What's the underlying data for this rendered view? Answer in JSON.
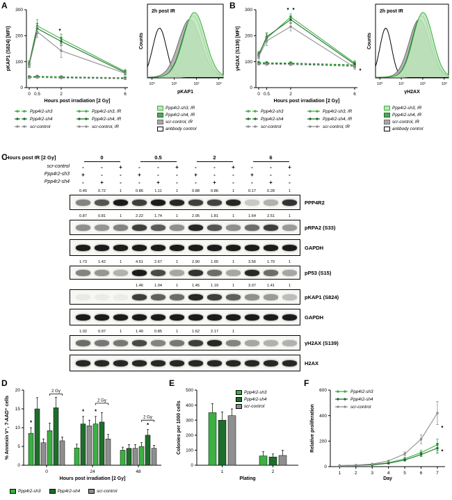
{
  "colors": {
    "green_light": "#3cb043",
    "green_dark": "#1d6e2a",
    "gray": "#8f8f8f",
    "black": "#000000"
  },
  "panelA": {
    "label": "A",
    "chart_data": {
      "type": "line",
      "ylabel": "pKAP1 (S824) [MFI]",
      "xlabel": "Hours post irradiation [2 Gy]",
      "ylim": [
        0,
        300
      ],
      "yticks": [
        0,
        100,
        200,
        300
      ],
      "x": [
        0,
        0.5,
        2,
        6
      ],
      "xticks": [
        "0",
        "0.5",
        "2",
        "6"
      ],
      "series": [
        {
          "name": "Ppp4r2-sh3",
          "color": "green_light",
          "dash": true,
          "values": [
            42,
            44,
            42,
            38
          ],
          "err": [
            4,
            4,
            4,
            4
          ]
        },
        {
          "name": "Ppp4r2-sh4",
          "color": "green_dark",
          "dash": true,
          "values": [
            40,
            41,
            39,
            36
          ],
          "err": [
            4,
            4,
            4,
            4
          ]
        },
        {
          "name": "scr-control",
          "color": "gray",
          "dash": true,
          "values": [
            38,
            39,
            37,
            34
          ],
          "err": [
            3,
            3,
            3,
            3
          ]
        },
        {
          "name": "Ppp4r2-sh3, IR",
          "color": "green_light",
          "dash": false,
          "values": [
            95,
            238,
            188,
            62
          ],
          "err": [
            10,
            24,
            18,
            8
          ]
        },
        {
          "name": "Ppp4r2-sh4, IR",
          "color": "green_dark",
          "dash": false,
          "values": [
            90,
            228,
            178,
            58
          ],
          "err": [
            10,
            20,
            16,
            8
          ]
        },
        {
          "name": "scr-control, IR",
          "color": "gray",
          "dash": false,
          "values": [
            86,
            215,
            142,
            55
          ],
          "err": [
            9,
            22,
            26,
            7
          ]
        }
      ],
      "annotations": [
        {
          "text": "*",
          "x": 2,
          "y": 212,
          "dx": -2
        }
      ]
    },
    "legend": [
      {
        "label": "Ppp4r2-sh3",
        "color": "green_light",
        "dash": true
      },
      {
        "label": "Ppp4r2-sh3, IR",
        "color": "green_light",
        "dash": false
      },
      {
        "label": "Ppp4r2-sh4",
        "color": "green_dark",
        "dash": true
      },
      {
        "label": "Ppp4r2-sh4, IR",
        "color": "green_dark",
        "dash": false
      },
      {
        "label": "scr-control",
        "color": "gray",
        "dash": true
      },
      {
        "label": "scr-control, IR",
        "color": "gray",
        "dash": false
      }
    ],
    "hist": {
      "title": "2h post IR",
      "ylabel": "Counts",
      "xlabel": "pKAP1",
      "xticks": [
        "10⁰",
        "10¹",
        "10²",
        "10³"
      ],
      "curves": [
        {
          "name": "antibody control",
          "center": 0.16,
          "width": 0.09,
          "height": 0.72,
          "stroke": "#000000",
          "fill": "none"
        },
        {
          "name": "scr-control, IR",
          "center": 0.56,
          "width": 0.15,
          "height": 0.85,
          "stroke": "#6e6e6e",
          "fill": "#a8a8a8"
        },
        {
          "name": "Ppp4r2-sh4, IR",
          "center": 0.6,
          "width": 0.14,
          "height": 0.9,
          "stroke": "#1d6e2a",
          "fill": "none"
        },
        {
          "name": "Ppp4r2-sh3, IR",
          "center": 0.62,
          "width": 0.145,
          "height": 0.95,
          "stroke": "#3cb043",
          "fill": "#bce6b8"
        }
      ],
      "legend": [
        {
          "label": "Ppp4r2-sh3, IR",
          "fill": "#bce6b8",
          "stroke": "#3cb043"
        },
        {
          "label": "Ppp4r2-sh4, IR",
          "fill": "#55a35c",
          "stroke": "#1d6e2a"
        },
        {
          "label": "scr-control, IR",
          "fill": "#a8a8a8",
          "stroke": "#6e6e6e"
        },
        {
          "label": "antibody control",
          "fill": "#ffffff",
          "stroke": "#000000"
        }
      ]
    }
  },
  "panelB": {
    "label": "B",
    "chart_data": {
      "type": "line",
      "ylabel": "γH2AX (S139) [MFI]",
      "xlabel": "Hours post irradiation [2 Gy]",
      "ylim": [
        0,
        300
      ],
      "yticks": [
        0,
        100,
        200,
        300
      ],
      "x": [
        0,
        0.5,
        2,
        6
      ],
      "xticks": [
        "0",
        "0.5",
        "2",
        "6"
      ],
      "series": [
        {
          "name": "Ppp4r2-sh3",
          "color": "green_light",
          "dash": true,
          "values": [
            97,
            96,
            95,
            88
          ],
          "err": [
            5,
            5,
            5,
            5
          ]
        },
        {
          "name": "Ppp4r2-sh4",
          "color": "green_dark",
          "dash": true,
          "values": [
            94,
            93,
            92,
            85
          ],
          "err": [
            5,
            5,
            5,
            5
          ]
        },
        {
          "name": "scr-control",
          "color": "gray",
          "dash": true,
          "values": [
            91,
            90,
            89,
            82
          ],
          "err": [
            4,
            4,
            4,
            4
          ]
        },
        {
          "name": "Ppp4r2-sh3, IR",
          "color": "green_light",
          "dash": false,
          "values": [
            130,
            190,
            272,
            95
          ],
          "err": [
            10,
            14,
            12,
            9
          ]
        },
        {
          "name": "Ppp4r2-sh4, IR",
          "color": "green_dark",
          "dash": false,
          "values": [
            125,
            196,
            262,
            90
          ],
          "err": [
            10,
            15,
            14,
            9
          ]
        },
        {
          "name": "scr-control, IR",
          "color": "gray",
          "dash": false,
          "values": [
            120,
            180,
            235,
            78
          ],
          "err": [
            10,
            18,
            16,
            8
          ]
        }
      ],
      "annotations": [
        {
          "text": "*",
          "x": 2,
          "y": 292,
          "dx": -4
        },
        {
          "text": "*",
          "x": 2,
          "y": 292,
          "dx": 4
        },
        {
          "text": "*",
          "x": 6,
          "y": 58,
          "dx": 8
        }
      ]
    },
    "legend": [
      {
        "label": "Ppp4r2-sh3",
        "color": "green_light",
        "dash": true
      },
      {
        "label": "Ppp4r2-sh3, IR",
        "color": "green_light",
        "dash": false
      },
      {
        "label": "Ppp4r2-sh4",
        "color": "green_dark",
        "dash": true
      },
      {
        "label": "Ppp4r2-sh4, IR",
        "color": "green_dark",
        "dash": false
      },
      {
        "label": "scr-control",
        "color": "gray",
        "dash": true
      },
      {
        "label": "scr-control, IR",
        "color": "gray",
        "dash": false
      }
    ],
    "hist": {
      "title": "2h post IR",
      "ylabel": "Counts",
      "xlabel": "γH2AX",
      "xticks": [
        "10⁰",
        "10¹",
        "10²",
        "10³"
      ],
      "curves": [
        {
          "name": "antibody control",
          "center": 0.14,
          "width": 0.08,
          "height": 0.72,
          "stroke": "#000000",
          "fill": "none"
        },
        {
          "name": "scr-control, IR",
          "center": 0.6,
          "width": 0.14,
          "height": 0.85,
          "stroke": "#6e6e6e",
          "fill": "#a8a8a8"
        },
        {
          "name": "Ppp4r2-sh4, IR",
          "center": 0.63,
          "width": 0.13,
          "height": 0.9,
          "stroke": "#1d6e2a",
          "fill": "none"
        },
        {
          "name": "Ppp4r2-sh3, IR",
          "center": 0.65,
          "width": 0.135,
          "height": 0.95,
          "stroke": "#3cb043",
          "fill": "#bce6b8"
        }
      ],
      "legend": [
        {
          "label": "Ppp4r2-sh3, IR",
          "fill": "#bce6b8",
          "stroke": "#3cb043"
        },
        {
          "label": "Ppp4r2-sh4, IR",
          "fill": "#55a35c",
          "stroke": "#1d6e2a"
        },
        {
          "label": "scr-control, IR",
          "fill": "#a8a8a8",
          "stroke": "#6e6e6e"
        },
        {
          "label": "antibody control",
          "fill": "#ffffff",
          "stroke": "#000000"
        }
      ]
    }
  },
  "panelC": {
    "label": "C",
    "header_title": "Hours post IR [2 Gy]",
    "groups": [
      "0",
      "0.5",
      "2",
      "6"
    ],
    "condition_rows": [
      {
        "label": "scr-control",
        "marks": [
          "-",
          "-",
          "+",
          "-",
          "-",
          "+",
          "-",
          "-",
          "+",
          "-",
          "-",
          "+"
        ]
      },
      {
        "label": "Ppp4r2-sh3",
        "marks": [
          "+",
          "-",
          "-",
          "+",
          "-",
          "-",
          "+",
          "-",
          "-",
          "+",
          "-",
          "-"
        ]
      },
      {
        "label": "Ppp4r2-sh4",
        "marks": [
          "-",
          "+",
          "-",
          "-",
          "+",
          "-",
          "-",
          "+",
          "-",
          "-",
          "+",
          "-"
        ]
      }
    ],
    "blots": [
      {
        "label": "PPP4R2",
        "h": 22,
        "numbers": [
          "0.40",
          "0.72",
          "1",
          "0.86",
          "1.11",
          "1",
          "0.88",
          "0.86",
          "1",
          "0.17",
          "0.28",
          "1"
        ],
        "bands": [
          0.5,
          0.7,
          0.95,
          0.8,
          0.95,
          0.9,
          0.8,
          0.78,
          0.9,
          0.2,
          0.3,
          0.85
        ]
      },
      {
        "label": "pRPA2 (S33)",
        "h": 22,
        "numbers": [
          "0.87",
          "0.81",
          "1",
          "2.22",
          "1.74",
          "1",
          "2.95",
          "1.81",
          "1",
          "1.64",
          "2.51",
          "1"
        ],
        "bands": [
          0.45,
          0.42,
          0.5,
          0.8,
          0.68,
          0.45,
          0.9,
          0.7,
          0.45,
          0.6,
          0.8,
          0.4
        ]
      },
      {
        "label": "GAPDH",
        "h": 24,
        "numbers": null,
        "bands": [
          0.95,
          0.95,
          0.95,
          0.95,
          0.95,
          0.95,
          0.95,
          0.95,
          0.95,
          0.95,
          0.95,
          0.95
        ]
      },
      {
        "label": "pP53 (S15)",
        "h": 20,
        "numbers": [
          "1.73",
          "1.42",
          "1",
          "4.51",
          "2.67",
          "1",
          "2.90",
          "1.65",
          "1",
          "3.56",
          "1.70",
          "1"
        ],
        "bands": [
          0.5,
          0.42,
          0.3,
          0.95,
          0.75,
          0.35,
          0.85,
          0.6,
          0.35,
          0.9,
          0.6,
          0.35
        ]
      },
      {
        "label": "pKAP1 (S824)",
        "h": 22,
        "numbers": [
          "",
          "",
          "",
          "1.46",
          "1.04",
          "1",
          "1.45",
          "1.19",
          "1",
          "3.07",
          "1.41",
          "1"
        ],
        "bands": [
          0.06,
          0.05,
          0.05,
          0.8,
          0.65,
          0.6,
          0.9,
          0.8,
          0.65,
          0.45,
          0.4,
          0.25
        ]
      },
      {
        "label": "GAPDH",
        "h": 24,
        "numbers": null,
        "bands": [
          0.95,
          0.95,
          0.95,
          0.95,
          0.95,
          0.95,
          0.95,
          0.95,
          0.95,
          0.95,
          0.95,
          0.95
        ]
      },
      {
        "label": "γH2AX (S139)",
        "h": 22,
        "numbers": [
          "1.02",
          "0.97",
          "1",
          "1.40",
          "0.85",
          "1",
          "1.62",
          "2.17",
          "1",
          "",
          "",
          ""
        ],
        "bands": [
          0.6,
          0.55,
          0.55,
          0.75,
          0.5,
          0.55,
          0.8,
          0.9,
          0.5,
          0.35,
          0.3,
          0.3
        ]
      },
      {
        "label": "H2AX",
        "h": 24,
        "numbers": null,
        "bands": [
          0.9,
          0.9,
          0.9,
          0.9,
          0.9,
          0.9,
          0.9,
          0.9,
          0.9,
          0.9,
          0.9,
          0.9
        ]
      }
    ]
  },
  "panelD": {
    "label": "D",
    "chart_data": {
      "type": "bar",
      "ylabel": "% Annexin V⁺, 7-AAD⁺ cells",
      "xlabel": "Hours post irradiation [2 Gy]",
      "ylim": [
        0,
        20
      ],
      "yticks": [
        0,
        5,
        10,
        15,
        20
      ],
      "barColors": [
        "green_light",
        "green_dark",
        "gray",
        "green_light",
        "green_dark",
        "gray"
      ],
      "groups": [
        {
          "x": "0",
          "bars": [
            8.5,
            15,
            6,
            9.2,
            15.3,
            6.5
          ],
          "errs": [
            1.5,
            3,
            1,
            2,
            2.8,
            1
          ]
        },
        {
          "x": "24",
          "bars": [
            4.6,
            11,
            10.5,
            11,
            11.5,
            7
          ],
          "errs": [
            1,
            2,
            1.5,
            2,
            2.5,
            1.2
          ]
        },
        {
          "x": "48",
          "bars": [
            4,
            4.5,
            4.5,
            5,
            8,
            4.5
          ],
          "errs": [
            0.8,
            1,
            1,
            1,
            1.5,
            0.8
          ]
        }
      ],
      "brackets": [
        {
          "group": 0,
          "from": 3,
          "to": 5,
          "y": 19,
          "label": "2 Gy"
        },
        {
          "group": 1,
          "from": 3,
          "to": 5,
          "y": 16.5,
          "label": "2 Gy"
        },
        {
          "group": 2,
          "from": 3,
          "to": 5,
          "y": 12,
          "label": "2 Gy"
        }
      ],
      "stars": [
        {
          "group": 0,
          "bar": 0,
          "y": 10.8
        },
        {
          "group": 1,
          "bar": 1,
          "y": 13.8
        },
        {
          "group": 1,
          "bar": 3,
          "y": 13.8
        },
        {
          "group": 2,
          "bar": 4,
          "y": 10.2
        }
      ]
    },
    "legend": [
      {
        "label": "Ppp4r2-sh3",
        "color": "green_light"
      },
      {
        "label": "Ppp4r2-sh4",
        "color": "green_dark"
      },
      {
        "label": "scr-control",
        "color": "gray"
      }
    ]
  },
  "panelE": {
    "label": "E",
    "chart_data": {
      "type": "bar",
      "ylabel": "Colonies per 1000 cells",
      "xlabel": "Plating",
      "ylim": [
        0,
        500
      ],
      "yticks": [
        0,
        100,
        200,
        300,
        400,
        500
      ],
      "barColors": [
        "green_light",
        "green_dark",
        "gray"
      ],
      "groups": [
        {
          "x": "1",
          "bars": [
            350,
            300,
            330
          ],
          "errs": [
            60,
            55,
            45
          ]
        },
        {
          "x": "2",
          "bars": [
            62,
            55,
            65
          ],
          "errs": [
            28,
            20,
            35
          ]
        }
      ],
      "brackets": [],
      "stars": []
    },
    "legend": [
      {
        "label": "Ppp4r2-sh3",
        "color": "green_light"
      },
      {
        "label": "Ppp4r2-sh4",
        "color": "green_dark"
      },
      {
        "label": "scr-control",
        "color": "gray"
      }
    ]
  },
  "panelF": {
    "label": "F",
    "chart_data": {
      "type": "line",
      "ylabel": "Relative proliferation",
      "xlabel": "Day",
      "ylim": [
        0,
        600
      ],
      "yticks": [
        0,
        200,
        400,
        600
      ],
      "x": [
        1,
        2,
        3,
        4,
        5,
        6,
        7
      ],
      "xticks": [
        "1",
        "2",
        "3",
        "4",
        "5",
        "6",
        "7"
      ],
      "xmin": 0.6,
      "xmax": 7.3,
      "series": [
        {
          "name": "Ppp4r2-sh3",
          "color": "green_light",
          "dash": false,
          "values": [
            8,
            10,
            16,
            30,
            62,
            110,
            172
          ],
          "err": [
            0,
            0,
            0,
            0,
            10,
            20,
            45
          ]
        },
        {
          "name": "Ppp4r2-sh4",
          "color": "green_dark",
          "dash": false,
          "values": [
            8,
            10,
            14,
            26,
            52,
            95,
            145
          ],
          "err": [
            0,
            0,
            0,
            0,
            8,
            15,
            38
          ]
        },
        {
          "name": "scr-control",
          "color": "gray",
          "dash": false,
          "values": [
            8,
            12,
            20,
            45,
            100,
            215,
            420
          ],
          "err": [
            0,
            0,
            0,
            0,
            15,
            35,
            90
          ]
        }
      ],
      "annotations": [
        {
          "text": "*",
          "x": 7,
          "y": 290,
          "dx": 7
        },
        {
          "text": "*",
          "x": 7,
          "y": 105,
          "dx": 7
        }
      ]
    },
    "legend": [
      {
        "label": "Ppp4r2-sh3",
        "color": "green_light"
      },
      {
        "label": "Ppp4r2-sh4",
        "color": "green_dark"
      },
      {
        "label": "scr-control",
        "color": "gray"
      }
    ]
  }
}
